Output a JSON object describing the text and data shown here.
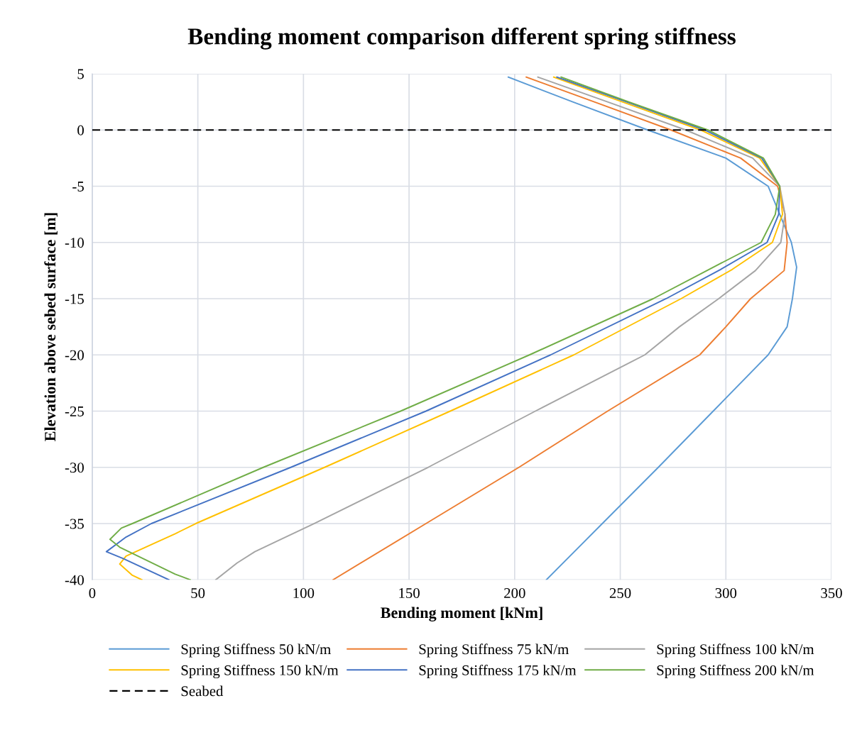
{
  "chart_data": {
    "type": "line",
    "title": "Bending moment comparison different spring stiffness",
    "xlabel": "Bending moment [kNm]",
    "ylabel": "Elevation above sebed surface [m]",
    "xlim": [
      0,
      350
    ],
    "xticks": [
      0,
      50,
      100,
      150,
      200,
      250,
      300,
      350
    ],
    "ylim": [
      -40,
      5
    ],
    "yticks": [
      -40,
      -35,
      -30,
      -25,
      -20,
      -15,
      -10,
      -5,
      0,
      5
    ],
    "grid": true,
    "legend": "bottom",
    "marker": "none",
    "line_style": "solid",
    "series": [
      {
        "name": "Spring Stiffness 50 kN/m",
        "color": "#5b9bd5",
        "x": [
          197,
          227.5,
          263,
          300,
          320,
          325.5,
          331,
          333.5,
          331.5,
          329,
          320,
          294,
          268,
          241.5,
          215
        ],
        "values": [
          4.7,
          2.5,
          0,
          -2.5,
          -5,
          -7.5,
          -10,
          -12.2,
          -15,
          -17.5,
          -20,
          -25,
          -30,
          -35,
          -40
        ]
      },
      {
        "name": "Spring Stiffness 75 kN/m",
        "color": "#ed7d31",
        "x": [
          205.5,
          237.7,
          274,
          307,
          324.5,
          328,
          329,
          327.6,
          311.7,
          300,
          287.6,
          244,
          202,
          158,
          114
        ],
        "values": [
          4.7,
          2.5,
          0,
          -2.5,
          -5,
          -7.5,
          -10,
          -12.5,
          -15,
          -17.5,
          -20,
          -25,
          -30,
          -35,
          -40
        ]
      },
      {
        "name": "Spring Stiffness 100 kN/m",
        "color": "#a5a5a5",
        "x": [
          211,
          244,
          281,
          312.7,
          325.5,
          328,
          326,
          314,
          296.6,
          278,
          261.6,
          209.8,
          159,
          105,
          77,
          68.6,
          58.5
        ],
        "values": [
          4.7,
          2.5,
          0,
          -2.5,
          -5,
          -7.5,
          -10,
          -12.5,
          -15,
          -17.5,
          -20,
          -25,
          -30,
          -35,
          -37.5,
          -38.5,
          -40
        ]
      },
      {
        "name": "Spring Stiffness 150 kN/m",
        "color": "#ffc000",
        "x": [
          218.5,
          251,
          288,
          316,
          325.5,
          326.8,
          322,
          303,
          278.8,
          228,
          169.5,
          110,
          49,
          39.3,
          16,
          13,
          19,
          23.5
        ],
        "values": [
          4.7,
          2.5,
          0,
          -2.5,
          -5,
          -7.5,
          -10,
          -12.4,
          -15,
          -20,
          -25,
          -30,
          -35,
          -35.9,
          -37.9,
          -38.6,
          -39.6,
          -40
        ]
      },
      {
        "name": "Spring Stiffness 175 kN/m",
        "color": "#4472c4",
        "x": [
          220,
          253,
          290,
          317,
          325.5,
          325,
          319.5,
          297.5,
          271.7,
          217,
          158,
          94,
          28,
          16,
          6.7,
          14.5,
          36.3
        ],
        "values": [
          4.7,
          2.5,
          0,
          -2.5,
          -5,
          -7.5,
          -10,
          -12.4,
          -15,
          -20,
          -25,
          -30,
          -35,
          -36.2,
          -37.5,
          -38.1,
          -40
        ]
      },
      {
        "name": "Spring Stiffness 200 kN/m",
        "color": "#70ad47",
        "x": [
          222,
          254,
          291.5,
          317.8,
          325.5,
          323.4,
          316.7,
          292,
          265.6,
          207,
          146,
          81,
          19,
          13.8,
          8.4,
          13,
          39.3,
          46.4
        ],
        "values": [
          4.7,
          2.5,
          0,
          -2.5,
          -5,
          -7.5,
          -10,
          -12.4,
          -15,
          -20,
          -25,
          -30,
          -35,
          -35.4,
          -36.4,
          -37.1,
          -39.5,
          -40
        ]
      }
    ],
    "ref_lines": [
      {
        "axis": "y",
        "value": 0,
        "label": "Seabed",
        "color": "#000000",
        "line_style": "dashed"
      }
    ]
  }
}
